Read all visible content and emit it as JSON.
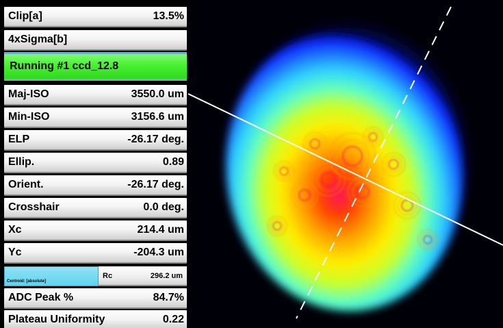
{
  "panel": {
    "clip": {
      "label": "Clip[a]",
      "value": "13.5%"
    },
    "sigma": {
      "label": "4xSigma[b]",
      "value": ""
    },
    "status": "Running #1 ccd_12.8",
    "rows": [
      {
        "label": "Maj-ISO",
        "value": "3550.0 um"
      },
      {
        "label": "Min-ISO",
        "value": "3156.6 um"
      },
      {
        "label": "ELP",
        "value": "-26.17 deg."
      },
      {
        "label": "Ellip.",
        "value": "0.89"
      },
      {
        "label": "Orient.",
        "value": "-26.17 deg."
      },
      {
        "label": "Crosshair",
        "value": "0.0 deg."
      },
      {
        "label": "Xc",
        "value": "214.4 um"
      },
      {
        "label": "Yc",
        "value": "-204.3 um"
      }
    ],
    "centroid": {
      "label": "Centroid: [absolute]",
      "rc_label": "Rc",
      "rc_value": "296.2 um"
    },
    "adc_peak": {
      "label": "ADC Peak %",
      "value": "84.7%"
    },
    "plateau": {
      "label": "Plateau Uniformity",
      "value": "0.22"
    }
  },
  "beam_image": {
    "palette": [
      "#000010",
      "#0a1fff",
      "#1f7bff",
      "#2ed0ff",
      "#5fffc0",
      "#c8ff2a",
      "#ffee00",
      "#ff9a00",
      "#ff3b00",
      "#ff1060"
    ],
    "major_axis_color": "#ffffff",
    "minor_axis_color": "#ffffff"
  }
}
